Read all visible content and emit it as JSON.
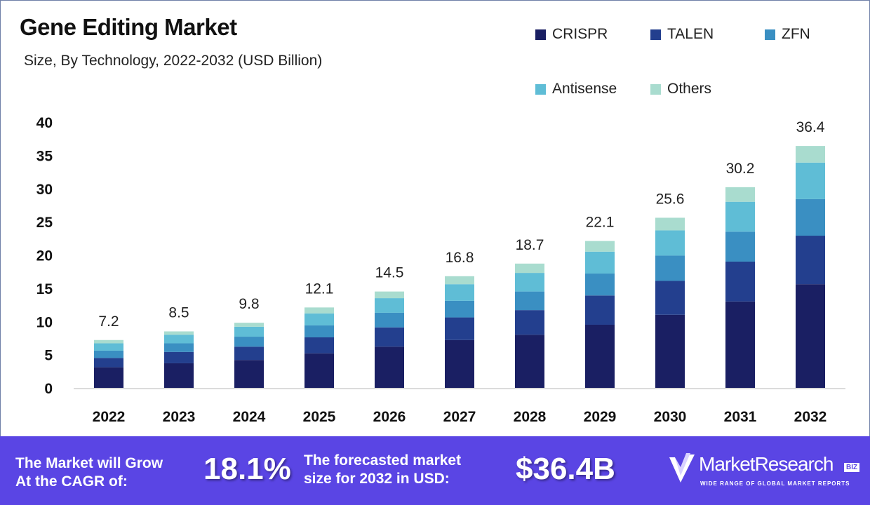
{
  "chart_data": {
    "type": "bar",
    "stacked": true,
    "title": "Gene Editing Market",
    "subtitle": "Size, By Technology, 2022-2032 (USD Billion)",
    "xlabel": "",
    "ylabel": "",
    "ylim": [
      0,
      40
    ],
    "yticks": [
      0,
      5,
      10,
      15,
      20,
      25,
      30,
      35,
      40
    ],
    "grid": false,
    "legend_position": "top-right",
    "categories": [
      "2022",
      "2023",
      "2024",
      "2025",
      "2026",
      "2027",
      "2028",
      "2029",
      "2030",
      "2031",
      "2032"
    ],
    "totals": [
      "7.2",
      "8.5",
      "9.8",
      "12.1",
      "14.5",
      "16.8",
      "18.7",
      "22.1",
      "25.6",
      "30.2",
      "36.4"
    ],
    "series": [
      {
        "name": "CRISPR",
        "color": "#1a1f63",
        "values": [
          3.1,
          3.7,
          4.2,
          5.2,
          6.2,
          7.2,
          8.0,
          9.5,
          11.0,
          13.0,
          15.6
        ]
      },
      {
        "name": "TALEN",
        "color": "#233f8e",
        "values": [
          1.4,
          1.7,
          2.0,
          2.4,
          2.9,
          3.4,
          3.7,
          4.4,
          5.1,
          6.0,
          7.3
        ]
      },
      {
        "name": "ZFN",
        "color": "#3a8fc2",
        "values": [
          1.1,
          1.3,
          1.5,
          1.8,
          2.2,
          2.5,
          2.8,
          3.3,
          3.8,
          4.5,
          5.5
        ]
      },
      {
        "name": "Antisense",
        "color": "#5fbdd6",
        "values": [
          1.1,
          1.3,
          1.5,
          1.8,
          2.2,
          2.5,
          2.8,
          3.3,
          3.8,
          4.5,
          5.5
        ]
      },
      {
        "name": "Others",
        "color": "#a9dccf",
        "values": [
          0.5,
          0.5,
          0.6,
          0.9,
          1.0,
          1.2,
          1.4,
          1.6,
          1.9,
          2.2,
          2.5
        ]
      }
    ]
  },
  "footer": {
    "cagr_label_1": "The Market will Grow",
    "cagr_label_2": "At the CAGR of:",
    "cagr_value": "18.1%",
    "forecast_label_1": "The forecasted market",
    "forecast_label_2": "size for 2032 in USD:",
    "forecast_value": "$36.4B",
    "logo_name": "MarketResearch",
    "logo_badge": "BIZ",
    "logo_tagline": "WIDE RANGE OF GLOBAL MARKET REPORTS"
  }
}
